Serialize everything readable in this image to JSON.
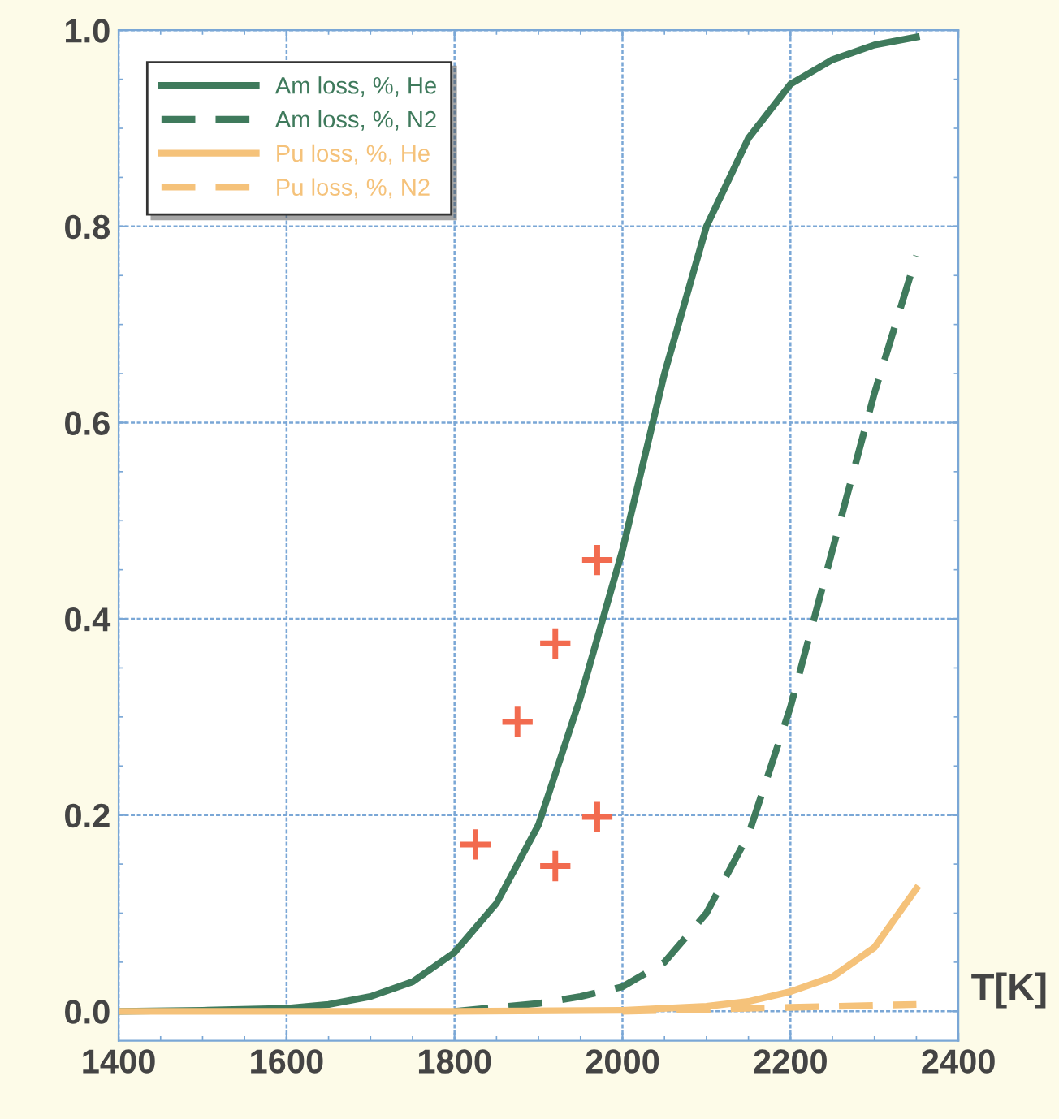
{
  "chart_data": {
    "type": "line",
    "xlabel": "T[K]",
    "xlim": [
      1400,
      2400
    ],
    "xticks": [
      1400,
      1600,
      1800,
      2000,
      2200,
      2400
    ],
    "ylim": [
      -0.03,
      1.0
    ],
    "yticks": [
      {
        "value": 0,
        "label": "0.0"
      },
      0.2,
      0.4,
      0.6,
      0.8,
      {
        "value": 1.0,
        "label": "1.0"
      }
    ],
    "grid": true,
    "legend": "top left",
    "series": [
      {
        "name": "Am loss, %, He",
        "color": "#3f7a5c",
        "line_style": "solid",
        "x": [
          1400,
          1500,
          1600,
          1650,
          1700,
          1750,
          1800,
          1850,
          1900,
          1950,
          2000,
          2050,
          2100,
          2150,
          2200,
          2250,
          2300,
          2350
        ],
        "values": [
          0,
          0.001,
          0.003,
          0.007,
          0.015,
          0.03,
          0.06,
          0.11,
          0.19,
          0.32,
          0.47,
          0.65,
          0.8,
          0.89,
          0.945,
          0.97,
          0.985,
          0.993
        ]
      },
      {
        "name": "Am loss, %, N2",
        "color": "#3f7a5c",
        "line_style": "dashed",
        "x": [
          1800,
          1900,
          1950,
          2000,
          2050,
          2100,
          2150,
          2200,
          2250,
          2300,
          2350
        ],
        "values": [
          0,
          0.008,
          0.015,
          0.025,
          0.05,
          0.1,
          0.18,
          0.31,
          0.47,
          0.63,
          0.77
        ]
      },
      {
        "name": "Pu loss, %, He",
        "color": "#f5c27a",
        "line_style": "solid",
        "x": [
          1400,
          1600,
          1800,
          2000,
          2100,
          2150,
          2200,
          2250,
          2300,
          2350
        ],
        "values": [
          0,
          0,
          0,
          0.001,
          0.005,
          0.01,
          0.02,
          0.035,
          0.065,
          0.125
        ]
      },
      {
        "name": "Pu loss, %, N2",
        "color": "#f5c27a",
        "line_style": "dashed",
        "x": [
          2000,
          2100,
          2200,
          2300,
          2350
        ],
        "values": [
          0,
          0.002,
          0.004,
          0.006,
          0.007
        ]
      },
      {
        "type": "scatter",
        "marker": "cross",
        "color": "#f26b4f",
        "x": [
          1825,
          1875,
          1920,
          1970,
          1920,
          1970
        ],
        "values": [
          0.17,
          0.295,
          0.375,
          0.46,
          0.148,
          0.198
        ]
      }
    ]
  }
}
